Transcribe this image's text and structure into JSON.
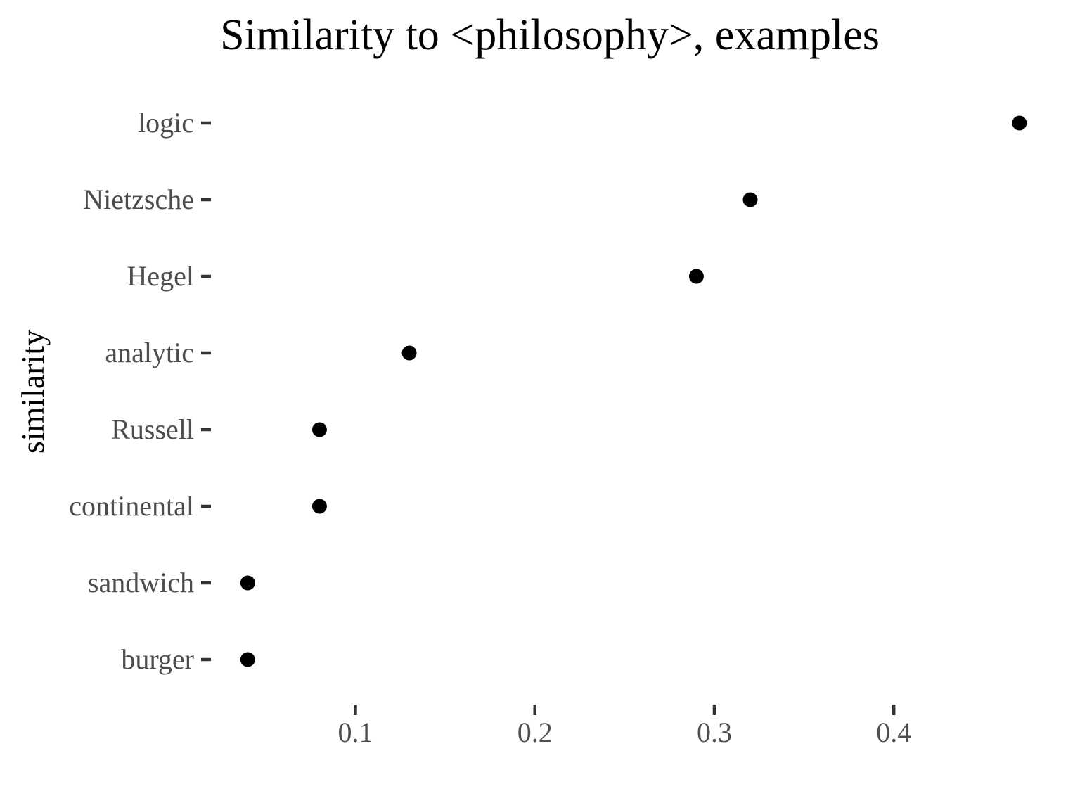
{
  "chart_data": {
    "type": "scatter",
    "title": "Similarity to <philosophy>, examples",
    "xlabel": "",
    "ylabel": "similarity",
    "categories": [
      "logic",
      "Nietzsche",
      "Hegel",
      "analytic",
      "Russell",
      "continental",
      "sandwich",
      "burger"
    ],
    "values": [
      0.47,
      0.32,
      0.29,
      0.13,
      0.08,
      0.08,
      0.04,
      0.04
    ],
    "x_ticks": [
      0.1,
      0.2,
      0.3,
      0.4
    ],
    "x_tick_labels": [
      "0.1",
      "0.2",
      "0.3",
      "0.4"
    ],
    "xlim": [
      0.0195,
      0.4865
    ],
    "grid": false,
    "legend": "none",
    "colors": {
      "point": "#000000",
      "tick_label": "#4d4d4d",
      "tick_mark": "#333333"
    }
  }
}
